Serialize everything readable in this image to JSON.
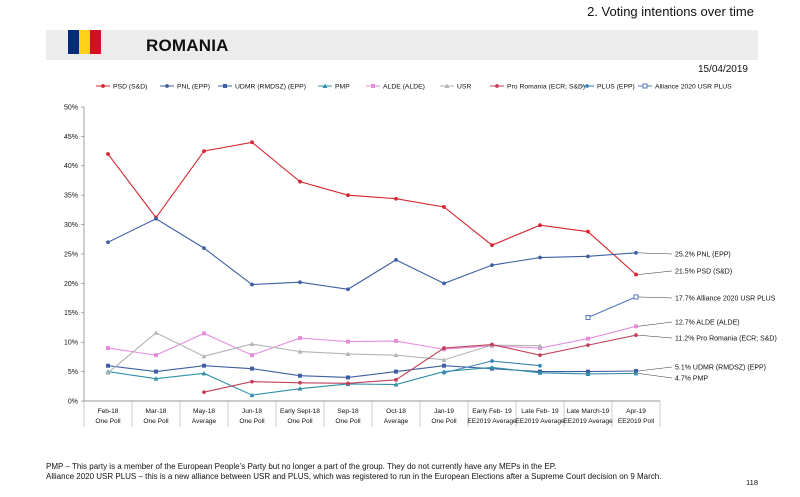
{
  "header": {
    "section_title": "2. Voting intentions over time"
  },
  "banner": {
    "country": "ROMANIA",
    "flag_colors": [
      "#002b7f",
      "#fcd116",
      "#ce1126"
    ]
  },
  "date": "15/04/2019",
  "footnotes": [
    "PMP – This party is a member of the European People’s Party but no longer a part of the group. They do not currently have any MEPs in the EP.",
    "Alliance 2020 USR PLUS – this is a new alliance between USR and PLUS, which was registered to run in the European Elections after a Supreme Court decision on 9 March."
  ],
  "page_number": "118",
  "chart_data": {
    "type": "line",
    "title": "",
    "xlabel": "",
    "ylabel": "",
    "ylim": [
      0,
      50
    ],
    "yticks": [
      "0%",
      "5%",
      "10%",
      "15%",
      "20%",
      "25%",
      "30%",
      "35%",
      "40%",
      "45%",
      "50%"
    ],
    "categories": [
      [
        "Feb-18",
        "One Poll"
      ],
      [
        "Mar-18",
        "One Poll"
      ],
      [
        "May-18",
        "Average"
      ],
      [
        "Jun-18",
        "One Poll"
      ],
      [
        "Early Sept-18",
        "One Poll"
      ],
      [
        "Sep-18",
        "One Poll"
      ],
      [
        "Oct-18",
        "Average"
      ],
      [
        "Jan-19",
        "One Poll"
      ],
      [
        "Early Feb- 19",
        "EE2019 Average"
      ],
      [
        "Late Feb- 19",
        "EE2019 Average"
      ],
      [
        "Late March-19",
        "EE2019 Average"
      ],
      [
        "Apr-19",
        "EE2019 Poll"
      ]
    ],
    "series": [
      {
        "name": "PSD (S&D)",
        "color": "#d7262e",
        "marker": "circle",
        "values": [
          42.0,
          31.2,
          42.5,
          44.0,
          37.3,
          35.0,
          34.4,
          33.0,
          26.5,
          29.9,
          28.8,
          21.5
        ],
        "end_label": "21.5% PSD (S&D)"
      },
      {
        "name": "PNL (EPP)",
        "color": "#3e5fa3",
        "marker": "circle",
        "values": [
          27.0,
          31.0,
          26.0,
          19.8,
          20.2,
          19.0,
          24.0,
          20.0,
          23.1,
          24.4,
          24.6,
          25.2
        ],
        "end_label": "25.2% PNL (EPP)"
      },
      {
        "name": "UDMR (RMDSZ) (EPP)",
        "color": "#3e5fa3",
        "marker": "square",
        "values": [
          6.0,
          5.0,
          6.0,
          5.5,
          4.3,
          4.0,
          5.0,
          6.0,
          5.5,
          5.0,
          5.0,
          5.1
        ],
        "end_label": "5.1% UDMR (RMDSZ) (EPP)"
      },
      {
        "name": "PMP",
        "color": "#2f8fa6",
        "marker": "triangle",
        "values": [
          5.0,
          3.8,
          4.7,
          1.0,
          2.1,
          2.9,
          2.8,
          5.0,
          5.7,
          4.8,
          4.6,
          4.7
        ],
        "end_label": "4.7% PMP"
      },
      {
        "name": "ALDE (ALDE)",
        "color": "#e58fdc",
        "marker": "square",
        "values": [
          9.0,
          7.8,
          11.5,
          7.8,
          10.7,
          10.1,
          10.2,
          8.8,
          9.4,
          9.0,
          10.6,
          12.7
        ],
        "end_label": "12.7% ALDE (ALDE)"
      },
      {
        "name": "USR",
        "color": "#b3b3b3",
        "marker": "triangle",
        "values": [
          4.8,
          11.6,
          7.6,
          9.7,
          8.4,
          8.0,
          7.8,
          7.0,
          9.5,
          9.4,
          null,
          null
        ],
        "end_label": ""
      },
      {
        "name": "Pro Romania (ECR; S&D)",
        "color": "#c0405a",
        "marker": "circle",
        "values": [
          null,
          null,
          1.5,
          3.3,
          3.1,
          3.0,
          3.6,
          9.0,
          9.6,
          7.8,
          9.5,
          11.2
        ],
        "end_label": "11.2% Pro Romania (ECR; S&D)"
      },
      {
        "name": "PLUS (EPP)",
        "color": "#3a86b7",
        "marker": "circle",
        "values": [
          null,
          null,
          null,
          null,
          null,
          null,
          null,
          4.8,
          6.8,
          6.0,
          null,
          null
        ],
        "end_label": ""
      },
      {
        "name": "Alliance 2020 USR PLUS",
        "color": "#5577c0",
        "marker": "square-open",
        "values": [
          null,
          null,
          null,
          null,
          null,
          null,
          null,
          null,
          null,
          null,
          14.2,
          17.7
        ],
        "end_label": "17.7% Alliance 2020 USR PLUS"
      }
    ]
  }
}
